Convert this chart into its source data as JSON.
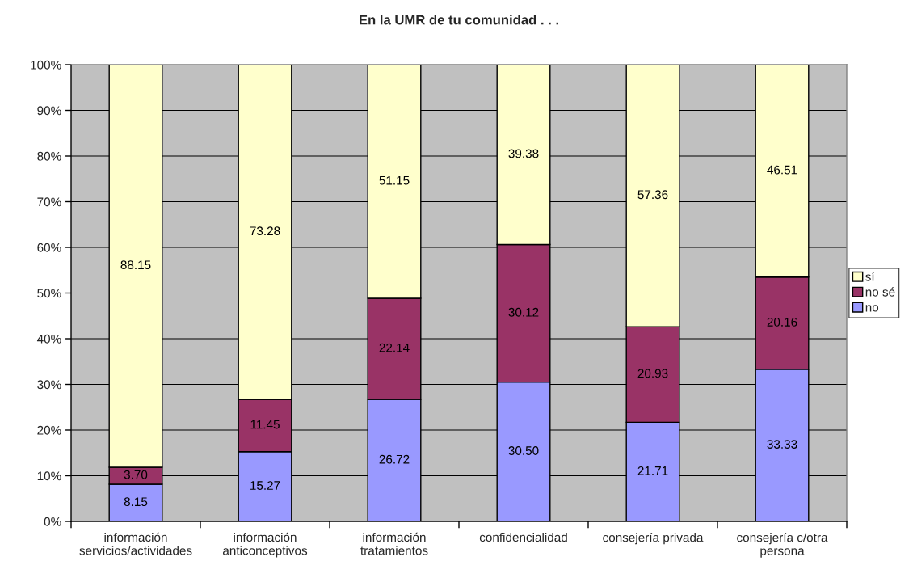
{
  "chart_data": {
    "type": "bar",
    "title": "En la UMR de tu comunidad . . .",
    "categories": [
      "información\nservicios/actividades",
      "información\nanticonceptivos",
      "información\ntratamientos",
      "confidencialidad",
      "consejería privada",
      "consejería c/otra\npersona"
    ],
    "stacked": true,
    "series": [
      {
        "name": "no",
        "color": "#9999ff",
        "values": [
          8.15,
          15.27,
          26.72,
          30.5,
          21.71,
          33.33
        ],
        "value_labels": [
          "8.15",
          "15.27",
          "26.72",
          "30.50",
          "21.71",
          "33.33"
        ]
      },
      {
        "name": "no sé",
        "color": "#993366",
        "values": [
          3.7,
          11.45,
          22.14,
          30.12,
          20.93,
          20.16
        ],
        "value_labels": [
          "3.70",
          "11.45",
          "22.14",
          "30.12",
          "20.93",
          "20.16"
        ]
      },
      {
        "name": "sí",
        "color": "#ffffcc",
        "values": [
          88.15,
          73.28,
          51.15,
          39.38,
          57.36,
          46.51
        ],
        "value_labels": [
          "88.15",
          "73.28",
          "51.15",
          "39.38",
          "57.36",
          "46.51"
        ]
      }
    ],
    "ylim": [
      0,
      100
    ],
    "yticks": [
      {
        "value": 0,
        "label": "0%"
      },
      {
        "value": 10,
        "label": "10%"
      },
      {
        "value": 20,
        "label": "20%"
      },
      {
        "value": 30,
        "label": "30%"
      },
      {
        "value": 40,
        "label": "40%"
      },
      {
        "value": 50,
        "label": "50%"
      },
      {
        "value": 60,
        "label": "60%"
      },
      {
        "value": 70,
        "label": "70%"
      },
      {
        "value": 80,
        "label": "80%"
      },
      {
        "value": 90,
        "label": "90%"
      },
      {
        "value": 100,
        "label": "100%"
      }
    ],
    "grid": "y",
    "legend": "right"
  }
}
